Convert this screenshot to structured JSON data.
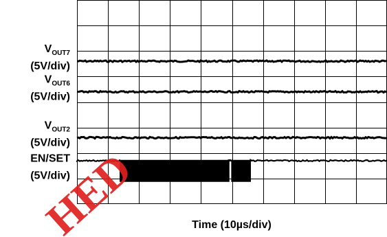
{
  "chart_data": {
    "type": "line",
    "grid": true,
    "x_divisions": 10,
    "y_divisions": 8,
    "time_per_div_us": 10,
    "xlabel": "Time (10µs/div)",
    "series": [
      {
        "name": "VOUT7",
        "name_main": "V",
        "name_sub": "OUT7",
        "scale_label": "(5V/div)",
        "unit": "V",
        "volts_per_div": 5,
        "signal": "constant",
        "level_div": 5.6
      },
      {
        "name": "VOUT6",
        "name_main": "V",
        "name_sub": "OUT6",
        "scale_label": "(5V/div)",
        "unit": "V",
        "volts_per_div": 5,
        "signal": "constant",
        "level_div": 4.4
      },
      {
        "name": "VOUT2",
        "name_main": "V",
        "name_sub": "OUT2",
        "scale_label": "(5V/div)",
        "unit": "V",
        "volts_per_div": 5,
        "signal": "constant",
        "level_div": 2.6
      },
      {
        "name": "EN/SET",
        "name_main": "EN/SET",
        "name_sub": "",
        "scale_label": "(5V/div)",
        "unit": "V",
        "volts_per_div": 5,
        "signal": "pulse_train",
        "high_div": 1.7,
        "low_div": 0.9,
        "bursts_div": [
          [
            1.4,
            4.9
          ],
          [
            5.0,
            5.6
          ]
        ]
      }
    ]
  },
  "watermark": {
    "text": "HED",
    "color": "#e02020"
  }
}
